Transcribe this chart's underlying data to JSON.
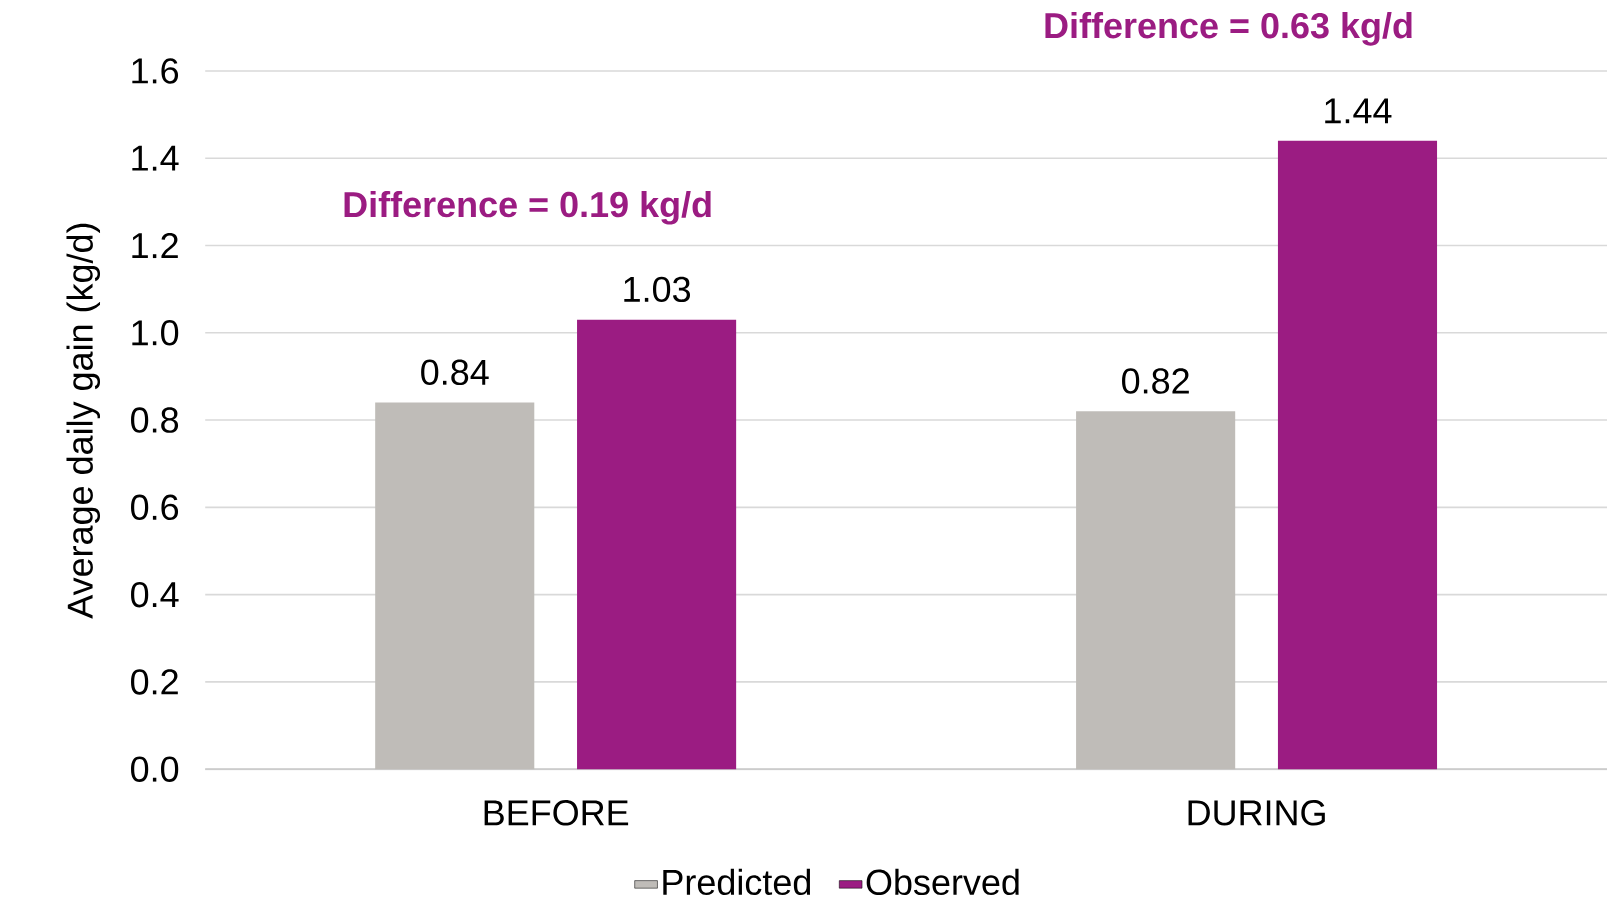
{
  "chart_data": {
    "type": "bar",
    "ylabel": "Average daily gain (kg/d)",
    "categories": [
      "BEFORE",
      "DURING"
    ],
    "series": [
      {
        "name": "Predicted",
        "color": "#bfbcb8",
        "values": [
          0.84,
          0.82
        ],
        "value_labels": [
          "0.84",
          "0.82"
        ]
      },
      {
        "name": "Observed",
        "color": "#9b1c82",
        "values": [
          1.03,
          1.44
        ],
        "value_labels": [
          "1.03",
          "1.44"
        ]
      }
    ],
    "ylim": [
      0,
      1.6
    ],
    "yticks": [
      {
        "value": 0,
        "label": "0.0"
      },
      {
        "value": 0.2,
        "label": "0.2"
      },
      {
        "value": 0.4,
        "label": "0.4"
      },
      {
        "value": 0.6,
        "label": "0.6"
      },
      {
        "value": 0.8,
        "label": "0.8"
      },
      {
        "value": 1.0,
        "label": "1.0"
      },
      {
        "value": 1.2,
        "label": "1.2"
      },
      {
        "value": 1.4,
        "label": "1.4"
      },
      {
        "value": 1.6,
        "label": "1.6"
      }
    ],
    "grid": "y",
    "legend": "bottom",
    "annotations": [
      "Difference = 0.19 kg/d",
      "Difference = 0.63 kg/d"
    ]
  }
}
